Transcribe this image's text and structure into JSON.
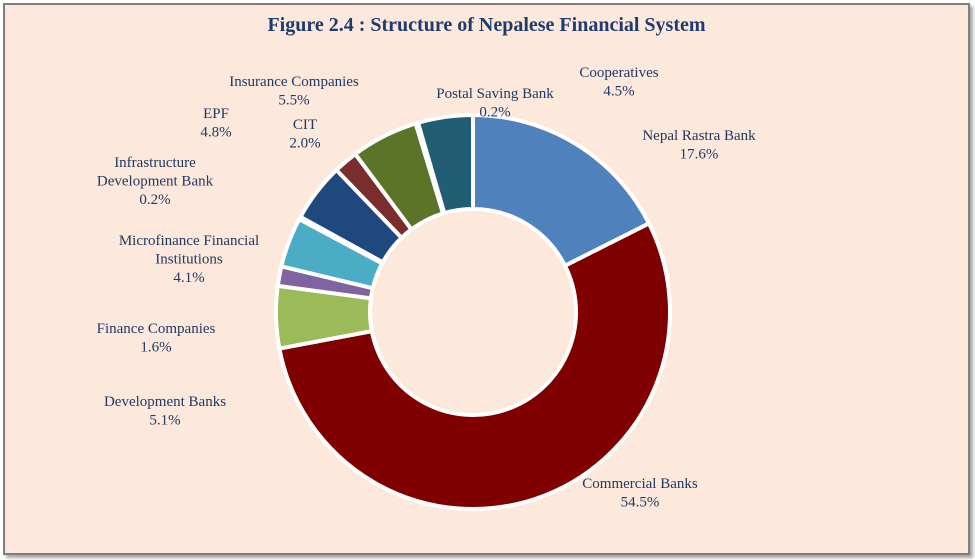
{
  "chart_data": {
    "type": "pie",
    "donut": true,
    "title": "Figure 2.4 : Structure of Nepalese Financial System",
    "slices": [
      {
        "name": "Nepal Rastra Bank",
        "value": 17.6,
        "label": "17.6%",
        "color": "#4f81bd"
      },
      {
        "name": "Commercial Banks",
        "value": 54.5,
        "label": "54.5%",
        "color": "#800000"
      },
      {
        "name": "Development Banks",
        "value": 5.1,
        "label": "5.1%",
        "color": "#9bbb59"
      },
      {
        "name": "Finance Companies",
        "value": 1.6,
        "label": "1.6%",
        "color": "#8064a2"
      },
      {
        "name": "Microfinance Financial Institutions",
        "value": 4.1,
        "label": "4.1%",
        "color": "#4bacc6"
      },
      {
        "name": "Infrastructure Development Bank",
        "value": 0.2,
        "label": "0.2%",
        "color": "#f79646"
      },
      {
        "name": "EPF",
        "value": 4.8,
        "label": "4.8%",
        "color": "#1f497d"
      },
      {
        "name": "CIT",
        "value": 2.0,
        "label": "2.0%",
        "color": "#7b2c2c"
      },
      {
        "name": "Insurance Companies",
        "value": 5.5,
        "label": "5.5%",
        "color": "#5b7428"
      },
      {
        "name": "Postal Saving Bank",
        "value": 0.2,
        "label": "0.2%",
        "color": "#8b6b9c"
      },
      {
        "name": "Cooperatives",
        "value": 4.5,
        "label": "4.5%",
        "color": "#215e73"
      }
    ]
  }
}
